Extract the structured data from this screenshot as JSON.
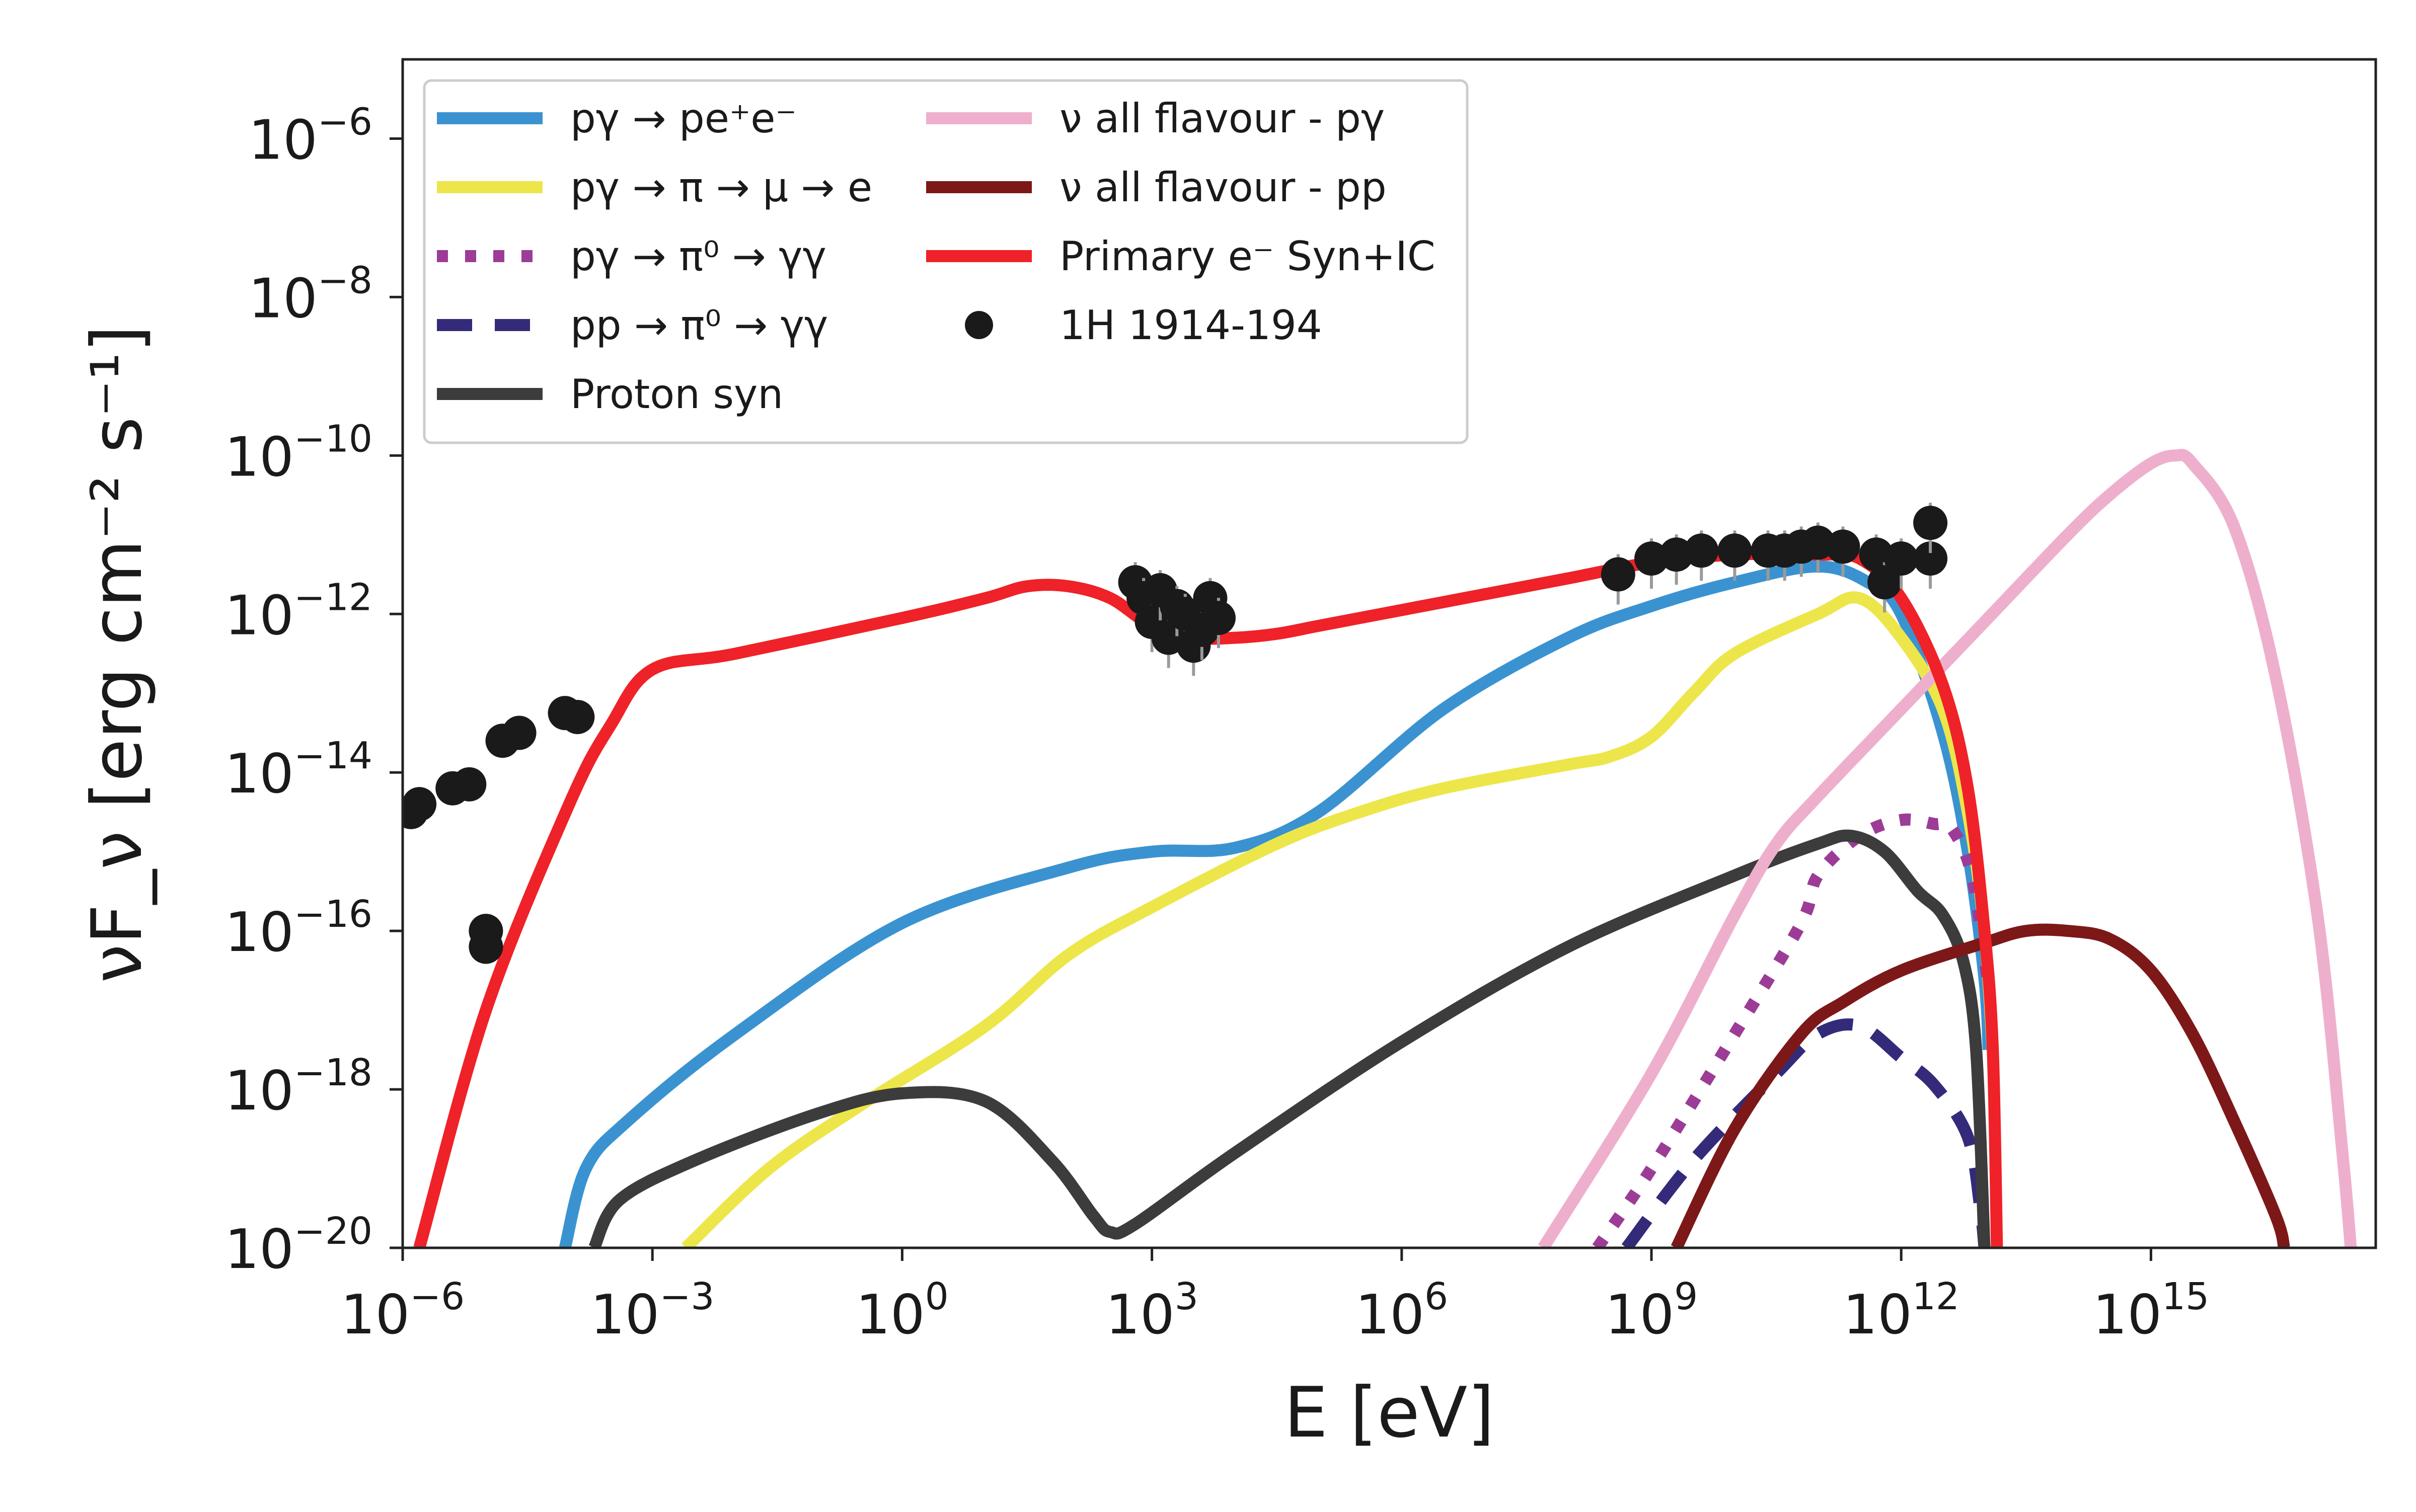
{
  "chart_data": {
    "type": "line",
    "title": "",
    "xlabel": "E [eV]",
    "ylabel": "νF_ν [erg cm⁻² s⁻¹]",
    "xscale": "log",
    "yscale": "log",
    "xlim_log10": [
      -6,
      17.7
    ],
    "ylim_log10": [
      -20,
      -5
    ],
    "x_ticks": [
      {
        "exp": -6,
        "text": "10",
        "sup": "−6"
      },
      {
        "exp": -3,
        "text": "10",
        "sup": "−3"
      },
      {
        "exp": 0,
        "text": "10",
        "sup": "0"
      },
      {
        "exp": 3,
        "text": "10",
        "sup": "3"
      },
      {
        "exp": 6,
        "text": "10",
        "sup": "6"
      },
      {
        "exp": 9,
        "text": "10",
        "sup": "9"
      },
      {
        "exp": 12,
        "text": "10",
        "sup": "12"
      },
      {
        "exp": 15,
        "text": "10",
        "sup": "15"
      }
    ],
    "y_ticks": [
      {
        "exp": -6,
        "text": "10",
        "sup": "−6"
      },
      {
        "exp": -8,
        "text": "10",
        "sup": "−8"
      },
      {
        "exp": -10,
        "text": "10",
        "sup": "−10"
      },
      {
        "exp": -12,
        "text": "10",
        "sup": "−12"
      },
      {
        "exp": -14,
        "text": "10",
        "sup": "−14"
      },
      {
        "exp": -16,
        "text": "10",
        "sup": "−16"
      },
      {
        "exp": -18,
        "text": "10",
        "sup": "−18"
      },
      {
        "exp": -20,
        "text": "10",
        "sup": "−20"
      }
    ],
    "legend_position": "top-left",
    "series": [
      {
        "name": "pγ → pe⁺e⁻",
        "color": "#3a93d0",
        "dash": "solid",
        "points": [
          [
            -4.05,
            -20
          ],
          [
            -3.8,
            -19
          ],
          [
            -3.3,
            -18.4
          ],
          [
            -2,
            -17.3
          ],
          [
            0,
            -15.9
          ],
          [
            2,
            -15.2
          ],
          [
            3,
            -15
          ],
          [
            4,
            -14.95
          ],
          [
            5,
            -14.5
          ],
          [
            6.5,
            -13.2
          ],
          [
            8,
            -12.3
          ],
          [
            9,
            -11.9
          ],
          [
            10,
            -11.6
          ],
          [
            11,
            -11.4
          ],
          [
            11.6,
            -11.6
          ],
          [
            12,
            -12
          ],
          [
            12.5,
            -13.5
          ],
          [
            12.8,
            -15
          ],
          [
            13,
            -16.6
          ],
          [
            13.05,
            -17.5
          ]
        ]
      },
      {
        "name": "pγ → π → μ → e",
        "color": "#ede64a",
        "dash": "solid",
        "points": [
          [
            -2.6,
            -20
          ],
          [
            -1.6,
            -19
          ],
          [
            -0.5,
            -18.2
          ],
          [
            1,
            -17.2
          ],
          [
            2,
            -16.3
          ],
          [
            3,
            -15.7
          ],
          [
            4.5,
            -14.9
          ],
          [
            5.5,
            -14.5
          ],
          [
            6.5,
            -14.2
          ],
          [
            8,
            -13.9
          ],
          [
            8.5,
            -13.8
          ],
          [
            9,
            -13.55
          ],
          [
            9.5,
            -13
          ],
          [
            10,
            -12.5
          ],
          [
            11,
            -12.0
          ],
          [
            11.5,
            -11.8
          ],
          [
            12,
            -12.3
          ],
          [
            12.5,
            -13.2
          ],
          [
            12.8,
            -14.5
          ],
          [
            13.0,
            -16
          ],
          [
            13.1,
            -17.5
          ]
        ]
      },
      {
        "name": "pγ → π⁰ → γγ",
        "color": "#9c3c96",
        "dash": "dotted",
        "points": [
          [
            8.35,
            -20
          ],
          [
            9,
            -19
          ],
          [
            10,
            -17.3
          ],
          [
            10.8,
            -15.9
          ],
          [
            11,
            -15.3
          ],
          [
            11.5,
            -14.8
          ],
          [
            12,
            -14.6
          ],
          [
            12.4,
            -14.65
          ],
          [
            12.6,
            -14.7
          ],
          [
            12.85,
            -15.3
          ],
          [
            13.05,
            -16.7
          ]
        ]
      },
      {
        "name": "pp → π⁰ → γγ",
        "color": "#332b7a",
        "dash": "dashed",
        "points": [
          [
            8.7,
            -20
          ],
          [
            9.5,
            -18.9
          ],
          [
            10.5,
            -17.8
          ],
          [
            11,
            -17.3
          ],
          [
            11.5,
            -17.2
          ],
          [
            12,
            -17.6
          ],
          [
            12.4,
            -17.95
          ],
          [
            12.8,
            -18.6
          ],
          [
            12.95,
            -19.5
          ],
          [
            13.0,
            -20
          ]
        ]
      },
      {
        "name": "Proton syn",
        "color": "#3c3c3c",
        "dash": "solid",
        "points": [
          [
            -3.7,
            -20
          ],
          [
            -3.4,
            -19.4
          ],
          [
            -2.5,
            -18.9
          ],
          [
            -1,
            -18.3
          ],
          [
            0,
            -18.05
          ],
          [
            1,
            -18.15
          ],
          [
            1.8,
            -18.9
          ],
          [
            2.3,
            -19.6
          ],
          [
            2.5,
            -19.8
          ],
          [
            2.8,
            -19.7
          ],
          [
            4,
            -18.8
          ],
          [
            6,
            -17.4
          ],
          [
            8,
            -16.2
          ],
          [
            10,
            -15.3
          ],
          [
            11,
            -14.9
          ],
          [
            11.4,
            -14.8
          ],
          [
            11.8,
            -15
          ],
          [
            12.2,
            -15.5
          ],
          [
            12.5,
            -15.8
          ],
          [
            12.75,
            -16.4
          ],
          [
            12.9,
            -17.5
          ],
          [
            13.0,
            -20
          ]
        ]
      },
      {
        "name": "ν all flavour - pγ",
        "color": "#eeafcd",
        "dash": "solid",
        "points": [
          [
            7.7,
            -20
          ],
          [
            9,
            -17.8
          ],
          [
            10,
            -15.8
          ],
          [
            10.5,
            -14.9
          ],
          [
            11,
            -14.3
          ],
          [
            12,
            -13.2
          ],
          [
            13,
            -12.1
          ],
          [
            14,
            -11
          ],
          [
            14.5,
            -10.5
          ],
          [
            15,
            -10.1
          ],
          [
            15.3,
            -10
          ],
          [
            15.5,
            -10.1
          ],
          [
            16,
            -10.9
          ],
          [
            16.5,
            -12.8
          ],
          [
            17,
            -15.8
          ],
          [
            17.3,
            -18.8
          ],
          [
            17.4,
            -20
          ]
        ]
      },
      {
        "name": "ν all flavour - pp",
        "color": "#7d1818",
        "dash": "solid",
        "points": [
          [
            9.3,
            -20
          ],
          [
            10,
            -18.5
          ],
          [
            10.8,
            -17.3
          ],
          [
            11.3,
            -16.9
          ],
          [
            12,
            -16.5
          ],
          [
            13,
            -16.15
          ],
          [
            13.5,
            -16
          ],
          [
            14,
            -16
          ],
          [
            14.5,
            -16.1
          ],
          [
            15,
            -16.5
          ],
          [
            15.5,
            -17.3
          ],
          [
            16,
            -18.4
          ],
          [
            16.5,
            -19.6
          ],
          [
            16.6,
            -20
          ]
        ]
      },
      {
        "name": "Primary e⁻ Syn+IC",
        "color": "#ee2228",
        "dash": "solid",
        "points": [
          [
            -5.8,
            -20
          ],
          [
            -5,
            -17
          ],
          [
            -4,
            -14.4
          ],
          [
            -3.5,
            -13.4
          ],
          [
            -3,
            -12.7
          ],
          [
            -2,
            -12.5
          ],
          [
            0,
            -12.05
          ],
          [
            1,
            -11.8
          ],
          [
            1.5,
            -11.65
          ],
          [
            2,
            -11.65
          ],
          [
            2.5,
            -11.8
          ],
          [
            3,
            -12.15
          ],
          [
            3.5,
            -12.3
          ],
          [
            4,
            -12.3
          ],
          [
            4.5,
            -12.25
          ],
          [
            5,
            -12.15
          ],
          [
            6,
            -11.95
          ],
          [
            7,
            -11.75
          ],
          [
            8,
            -11.55
          ],
          [
            9,
            -11.35
          ],
          [
            10,
            -11.25
          ],
          [
            11,
            -11.25
          ],
          [
            11.5,
            -11.3
          ],
          [
            12,
            -11.8
          ],
          [
            12.5,
            -12.9
          ],
          [
            12.8,
            -14.2
          ],
          [
            13.0,
            -16
          ],
          [
            13.1,
            -17.5
          ],
          [
            13.15,
            -20
          ]
        ]
      }
    ],
    "observations": {
      "name": "1H 1914-194",
      "color": "#1a1a1a",
      "points": [
        [
          -5.9,
          -14.5
        ],
        [
          -5.8,
          -14.4
        ],
        [
          -5.4,
          -14.2
        ],
        [
          -5.2,
          -14.15
        ],
        [
          -5.0,
          -16.0
        ],
        [
          -5.0,
          -16.2
        ],
        [
          -4.8,
          -13.6
        ],
        [
          -4.6,
          -13.5
        ],
        [
          -4.05,
          -13.25
        ],
        [
          -3.9,
          -13.3
        ],
        [
          2.8,
          -11.6
        ],
        [
          2.9,
          -11.8
        ],
        [
          3,
          -12.1
        ],
        [
          3.1,
          -11.7
        ],
        [
          3.2,
          -12.3
        ],
        [
          3.3,
          -11.9
        ],
        [
          3.4,
          -12.0
        ],
        [
          3.5,
          -12.4
        ],
        [
          3.6,
          -12.2
        ],
        [
          3.7,
          -11.8
        ],
        [
          3.8,
          -12.05
        ],
        [
          8.6,
          -11.5
        ],
        [
          9.0,
          -11.3
        ],
        [
          9.3,
          -11.25
        ],
        [
          9.6,
          -11.2
        ],
        [
          10.0,
          -11.2
        ],
        [
          10.4,
          -11.2
        ],
        [
          10.6,
          -11.2
        ],
        [
          10.8,
          -11.15
        ],
        [
          11.0,
          -11.1
        ],
        [
          11.3,
          -11.15
        ],
        [
          11.7,
          -11.25
        ],
        [
          11.8,
          -11.6
        ],
        [
          12.0,
          -11.3
        ],
        [
          12.35,
          -11.3
        ],
        [
          12.35,
          -10.85
        ]
      ]
    }
  }
}
